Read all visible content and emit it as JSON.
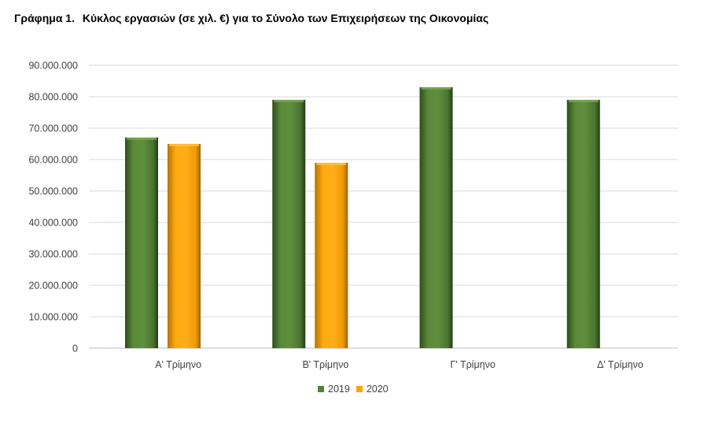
{
  "title": {
    "number": "Γράφημα 1.",
    "text": "Κύκλος εργασιών (σε χιλ. €) για το Σύνολο των Επιχειρήσεων της Οικονομίας"
  },
  "chart_data": {
    "type": "bar",
    "categories": [
      "Α' Τρίμηνο",
      "Β' Τρίμηνο",
      "Γ' Τρίμηνο",
      "Δ' Τρίμηνο"
    ],
    "series": [
      {
        "name": "2019",
        "color": "#548235",
        "values": [
          67000000,
          79000000,
          83000000,
          79000000
        ]
      },
      {
        "name": "2020",
        "color": "#FFA500",
        "values": [
          65000000,
          59000000,
          null,
          null
        ]
      }
    ],
    "ylim": [
      0,
      90000000
    ],
    "yticks": [
      "0",
      "10.000.000",
      "20.000.000",
      "30.000.000",
      "40.000.000",
      "50.000.000",
      "60.000.000",
      "70.000.000",
      "80.000.000",
      "90.000.000"
    ],
    "ytick_values": [
      0,
      10000000,
      20000000,
      30000000,
      40000000,
      50000000,
      60000000,
      70000000,
      80000000,
      90000000
    ],
    "grid": true,
    "legend_position": "bottom"
  }
}
